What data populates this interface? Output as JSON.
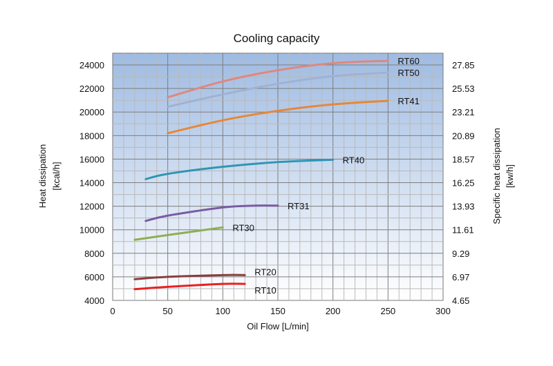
{
  "chart_data": {
    "type": "line",
    "title": "Cooling capacity",
    "xlabel": "Oil Flow [L/min]",
    "ylabel": "Heat dissipation",
    "ylabel_unit": "[kcal/h]",
    "y2label": "Specific heat dissipation",
    "y2label_unit": "[kw/h]",
    "xlim": [
      0,
      300
    ],
    "ylim": [
      4000,
      25000
    ],
    "x_ticks": [
      "0",
      "50",
      "100",
      "150",
      "200",
      "250",
      "300"
    ],
    "y_ticks": [
      "4000",
      "6000",
      "8000",
      "10000",
      "12000",
      "14000",
      "16000",
      "18000",
      "20000",
      "22000",
      "24000"
    ],
    "y2_ticks": [
      "4.65",
      "6.97",
      "9.29",
      "11.61",
      "13.93",
      "16.25",
      "18.57",
      "20.89",
      "23.21",
      "25.53",
      "27.85"
    ],
    "grid": true,
    "series": [
      {
        "name": "RT60",
        "color": "#e0877f",
        "x": [
          50,
          100,
          150,
          200,
          250
        ],
        "y": [
          21250,
          22600,
          23550,
          24150,
          24350
        ]
      },
      {
        "name": "RT50",
        "color": "#9fb2d4",
        "x": [
          50,
          100,
          150,
          200,
          250
        ],
        "y": [
          20450,
          21500,
          22400,
          23050,
          23350
        ]
      },
      {
        "name": "RT41",
        "color": "#e6873a",
        "x": [
          50,
          100,
          150,
          200,
          250
        ],
        "y": [
          18200,
          19300,
          20100,
          20650,
          20950
        ]
      },
      {
        "name": "RT40",
        "color": "#2e96b3",
        "x": [
          30,
          50,
          100,
          150,
          200
        ],
        "y": [
          14300,
          14750,
          15350,
          15750,
          15950
        ]
      },
      {
        "name": "RT31",
        "color": "#7a5aa3",
        "x": [
          30,
          50,
          100,
          130,
          150
        ],
        "y": [
          10750,
          11200,
          11900,
          12050,
          12050
        ]
      },
      {
        "name": "RT30",
        "color": "#8fae52",
        "x": [
          20,
          50,
          100
        ],
        "y": [
          9150,
          9550,
          10200
        ]
      },
      {
        "name": "RT20",
        "color": "#8a3e3e",
        "x": [
          20,
          50,
          100,
          120
        ],
        "y": [
          5800,
          6000,
          6150,
          6150
        ]
      },
      {
        "name": "RT10",
        "color": "#ea2020",
        "x": [
          20,
          50,
          100,
          120
        ],
        "y": [
          4950,
          5150,
          5400,
          5400
        ]
      }
    ]
  }
}
